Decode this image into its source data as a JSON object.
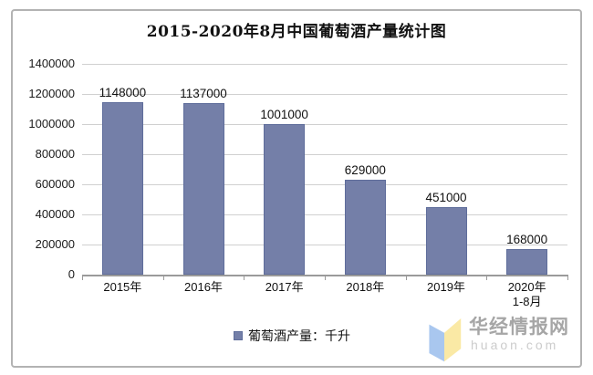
{
  "chart": {
    "title": "2015-2020年8月中国葡萄酒产量统计图"
  },
  "chart_data": {
    "type": "bar",
    "title": "2015-2020年8月中国葡萄酒产量统计图",
    "categories": [
      "2015年",
      "2016年",
      "2017年",
      "2018年",
      "2019年",
      "2020年 1-8月"
    ],
    "x_labels": [
      {
        "l1": "2015年",
        "l2": ""
      },
      {
        "l1": "2016年",
        "l2": ""
      },
      {
        "l1": "2017年",
        "l2": ""
      },
      {
        "l1": "2018年",
        "l2": ""
      },
      {
        "l1": "2019年",
        "l2": ""
      },
      {
        "l1": "2020年",
        "l2": "1-8月"
      }
    ],
    "values": [
      1148000,
      1137000,
      1001000,
      629000,
      451000,
      168000
    ],
    "value_labels": [
      "1148000",
      "1137000",
      "1001000",
      "629000",
      "451000",
      "168000"
    ],
    "ylim": [
      0,
      1400000
    ],
    "y_tick_step": 200000,
    "y_ticks_top_down": [
      "1400000",
      "1200000",
      "1000000",
      "800000",
      "600000",
      "400000",
      "200000",
      "0"
    ],
    "xlabel": "",
    "ylabel": "",
    "grid": true,
    "legend": {
      "label": "葡萄酒产量：千升",
      "position": "bottom-center"
    },
    "bar_color": "#747fa8",
    "bar_border_color": "#5f6d9b",
    "gridline_color": "#d0d0d0",
    "axis_color": "#9a9a9a"
  },
  "watermark": {
    "site_name": "华经情报网",
    "domain": "huaon.com",
    "logo_blue": "#a9c7ef",
    "logo_yellow": "#fae9a5"
  }
}
